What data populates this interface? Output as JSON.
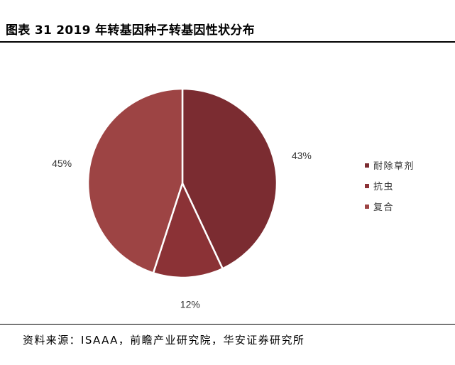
{
  "title": "图表 31 2019 年转基因种子转基因性状分布",
  "source": "资料来源：ISAAA，前瞻产业研究院，华安证券研究所",
  "chart_data": {
    "type": "pie",
    "title": "图表 31 2019 年转基因种子转基因性状分布",
    "start_angle_deg": 0,
    "direction": "clockwise",
    "legend_position": "right",
    "slices": [
      {
        "name": "耐除草剂",
        "value": 43,
        "label": "43%",
        "color": "#7b2c31"
      },
      {
        "name": "抗虫",
        "value": 12,
        "label": "12%",
        "color": "#8b3236"
      },
      {
        "name": "复合",
        "value": 45,
        "label": "45%",
        "color": "#9d4444"
      }
    ]
  }
}
